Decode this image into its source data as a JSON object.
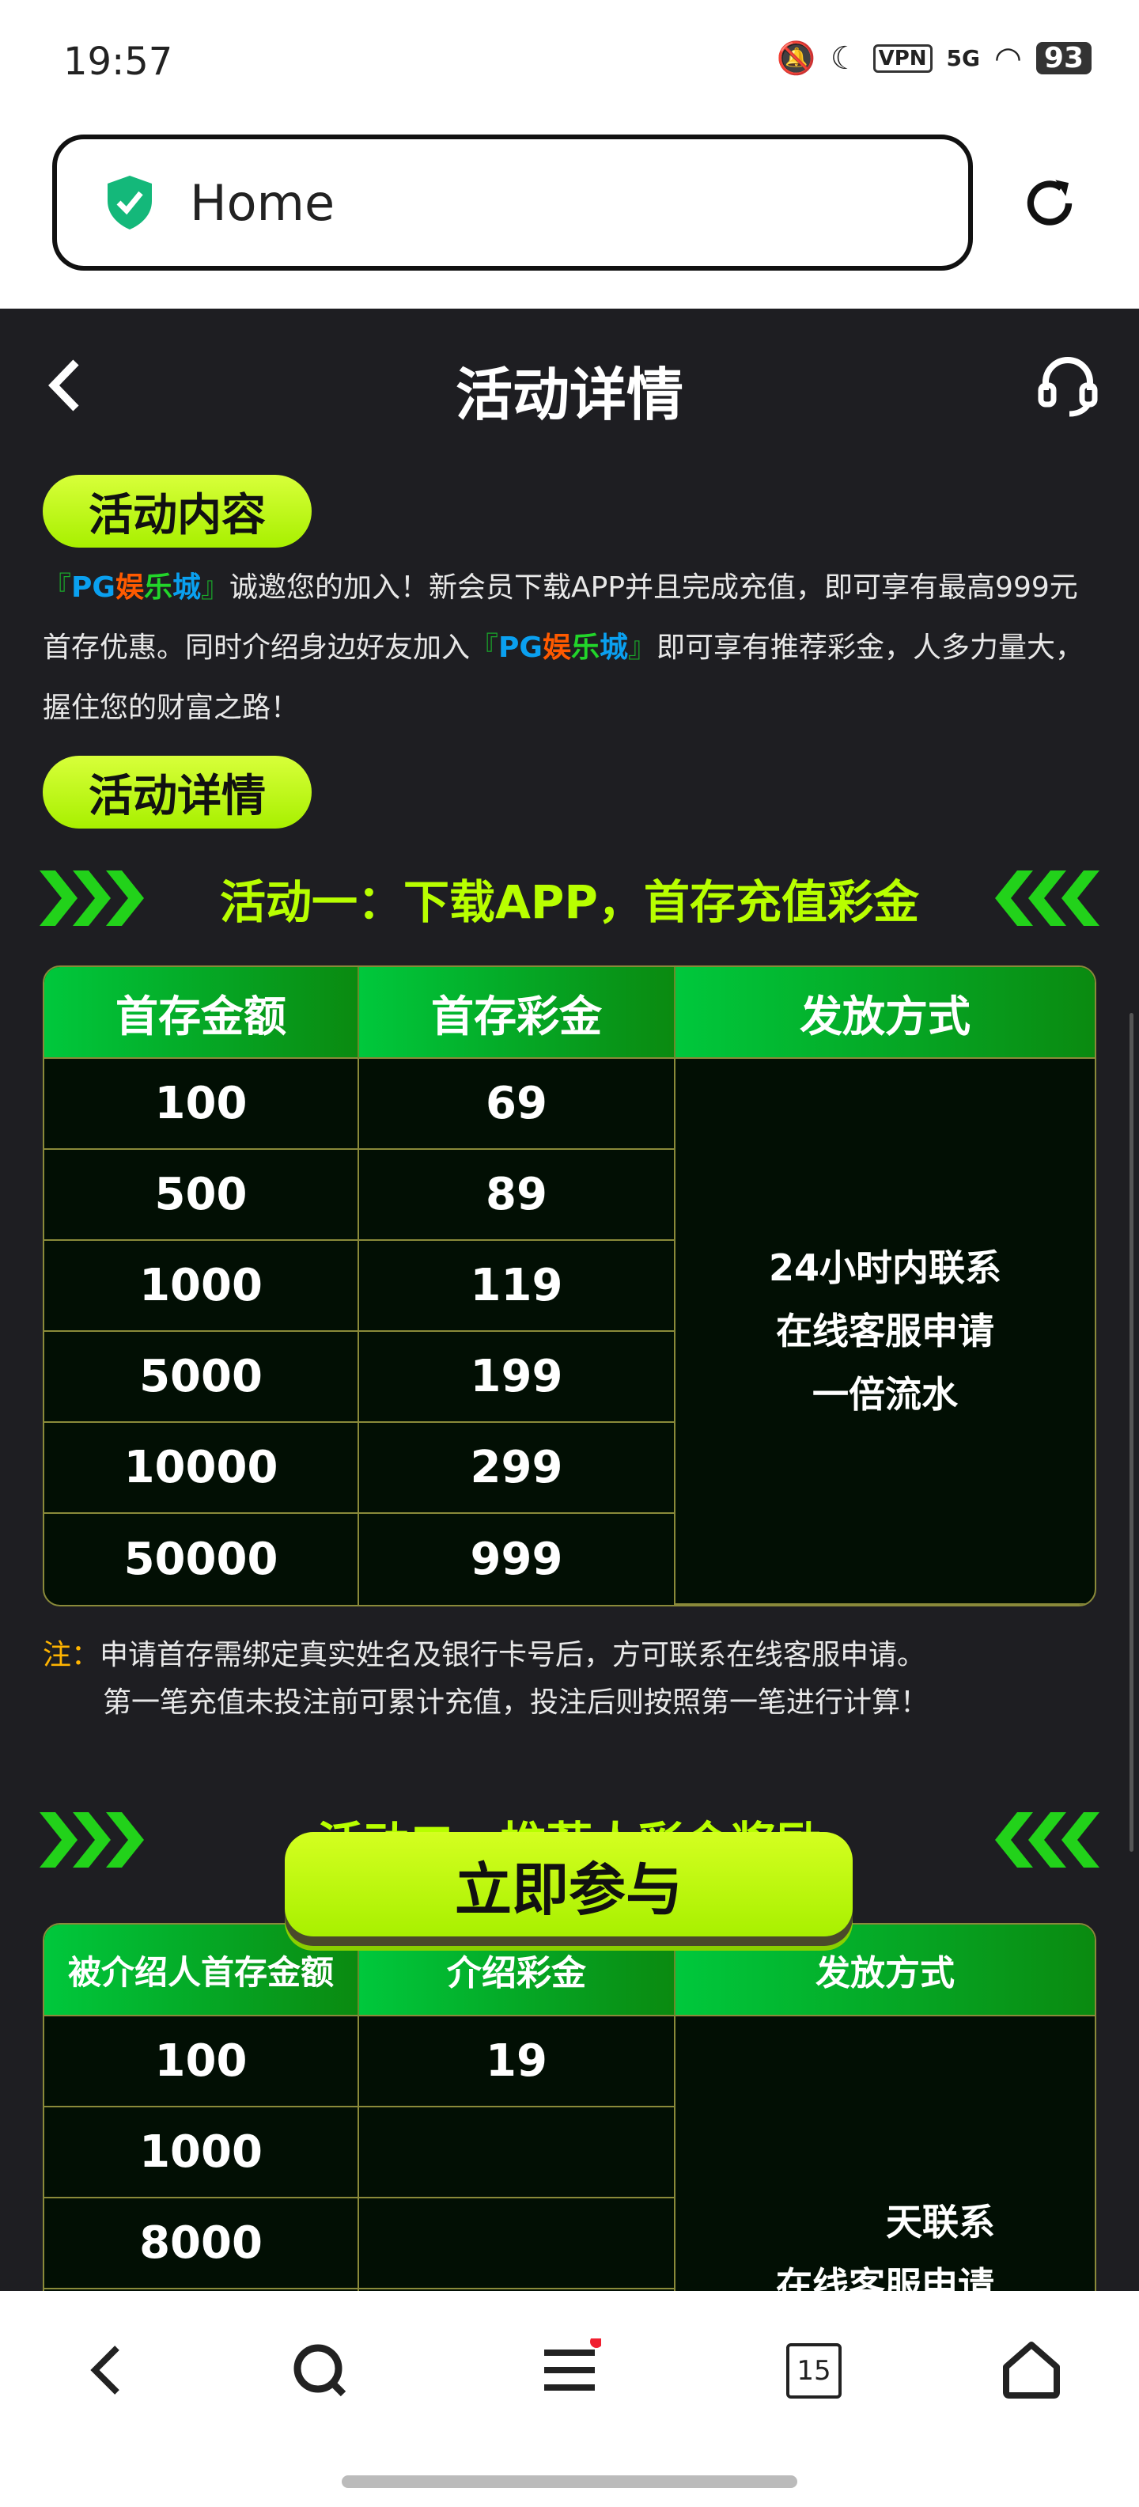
{
  "status": {
    "time": "19:57",
    "vpn": "VPN",
    "network": "5G",
    "battery": "93"
  },
  "browser": {
    "url_title": "Home"
  },
  "header": {
    "title": "活动详情"
  },
  "section1": {
    "pill": "活动内容",
    "intro": {
      "bracket_open": "『",
      "pg": "PG",
      "yu": "娱",
      "le": "乐",
      "cheng": "城",
      "bracket_close": "』",
      "part1": "诚邀您的加入！新会员下载APP并且完成充值，即可享有最高999元首存优惠。同时介绍身边好友加入",
      "part2": "即可享有推荐彩金，人多力量大，握住您的财富之路！"
    }
  },
  "section2": {
    "pill": "活动详情"
  },
  "activity1": {
    "title": "活动一：下载APP，首存充值彩金",
    "headers": [
      "首存金额",
      "首存彩金",
      "发放方式"
    ],
    "rows": [
      [
        "100",
        "69"
      ],
      [
        "500",
        "89"
      ],
      [
        "1000",
        "119"
      ],
      [
        "5000",
        "199"
      ],
      [
        "10000",
        "299"
      ],
      [
        "50000",
        "999"
      ]
    ],
    "method": [
      "24小时内联系",
      "在线客服申请",
      "一倍流水"
    ],
    "note_label": "注：",
    "note_lines": [
      "申请首存需绑定真实姓名及银行卡号后，方可联系在线客服申请。",
      "第一笔充值未投注前可累计充值，投注后则按照第一笔进行计算！"
    ]
  },
  "activity2": {
    "title": "活动二、推荐人彩金奖励",
    "headers": [
      "被介绍人首存金额",
      "介绍彩金",
      "发放方式"
    ],
    "rows": [
      [
        "100",
        "19"
      ],
      [
        "1000",
        ""
      ],
      [
        "8000",
        ""
      ]
    ],
    "method": [
      "天联系",
      "在线客服申请"
    ]
  },
  "join_button": "立即参与",
  "nav": {
    "tabs_count": "15"
  },
  "colors": {
    "accent": "#b8ff00",
    "page_bg": "#1e1e22",
    "table_header": "#00c83c"
  }
}
